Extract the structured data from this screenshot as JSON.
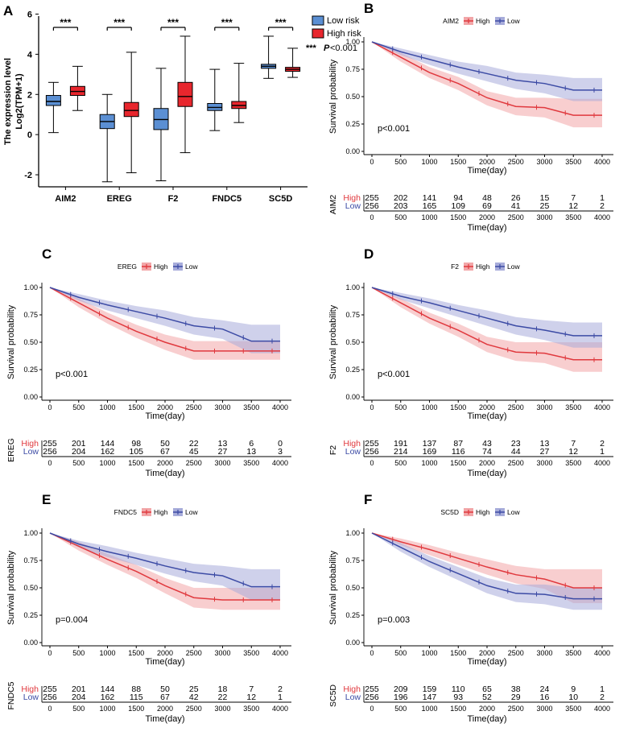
{
  "colors": {
    "low": "#5B8FD3",
    "high": "#E8262D",
    "km_high": "#E0393E",
    "km_high_fill": "#F2A6A8",
    "km_low": "#3C4BA5",
    "km_low_fill": "#A7ACDA"
  },
  "chart_data": [
    {
      "panel": "A",
      "type": "box",
      "ylabel_line1": "The expression level",
      "ylabel_line2": "Log2(TPM+1)",
      "ylim": [
        -2.6,
        5.9
      ],
      "yticks": [
        "-2",
        "0",
        "2",
        "4",
        "6"
      ],
      "ytick_values": [
        -2,
        0,
        2,
        4,
        6
      ],
      "categories": [
        "AIM2",
        "EREG",
        "F2",
        "FNDC5",
        "SC5D"
      ],
      "significance": [
        "***",
        "***",
        "***",
        "***",
        "***"
      ],
      "legend": {
        "low": "Low risk",
        "high": "High risk",
        "sig_stars": "***",
        "sig_p": "P",
        "sig_rest": "<0.001"
      },
      "series": [
        {
          "name": "Low risk",
          "boxes": [
            {
              "min": 0.1,
              "q1": 1.45,
              "median": 1.65,
              "q3": 1.95,
              "max": 2.6
            },
            {
              "min": -2.35,
              "q1": 0.3,
              "median": 0.65,
              "q3": 1.0,
              "max": 2.0
            },
            {
              "min": -2.3,
              "q1": 0.25,
              "median": 0.75,
              "q3": 1.3,
              "max": 3.3
            },
            {
              "min": 0.2,
              "q1": 1.2,
              "median": 1.35,
              "q3": 1.55,
              "max": 3.25
            },
            {
              "min": 2.8,
              "q1": 3.3,
              "median": 3.4,
              "q3": 3.5,
              "max": 4.9
            }
          ]
        },
        {
          "name": "High risk",
          "boxes": [
            {
              "min": 1.2,
              "q1": 1.95,
              "median": 2.15,
              "q3": 2.4,
              "max": 3.4
            },
            {
              "min": -1.9,
              "q1": 0.9,
              "median": 1.2,
              "q3": 1.6,
              "max": 4.1
            },
            {
              "min": -0.9,
              "q1": 1.4,
              "median": 1.9,
              "q3": 2.6,
              "max": 4.9
            },
            {
              "min": 0.6,
              "q1": 1.3,
              "median": 1.45,
              "q3": 1.65,
              "max": 3.55
            },
            {
              "min": 2.85,
              "q1": 3.15,
              "median": 3.25,
              "q3": 3.35,
              "max": 4.3
            }
          ]
        }
      ]
    },
    {
      "panel": "B",
      "type": "line",
      "gene": "AIM2",
      "legend_high": "High",
      "legend_low": "Low",
      "xlabel": "Time(day)",
      "ylabel": "Survival probability",
      "pvalue": "p<0.001",
      "xlim": [
        0,
        4000
      ],
      "ylim": [
        0,
        1
      ],
      "xticks": [
        "0",
        "500",
        "1000",
        "1500",
        "2000",
        "2500",
        "3000",
        "3500",
        "4000"
      ],
      "yticks": [
        "0.00",
        "0.25",
        "0.50",
        "0.75",
        "1.00"
      ],
      "series": [
        {
          "name": "High",
          "x": [
            0,
            500,
            1000,
            1500,
            2000,
            2500,
            3000,
            3500,
            4000
          ],
          "y": [
            1.0,
            0.86,
            0.72,
            0.62,
            0.49,
            0.41,
            0.4,
            0.33,
            0.33
          ],
          "lower": [
            1.0,
            0.82,
            0.67,
            0.56,
            0.42,
            0.33,
            0.31,
            0.22,
            0.22
          ],
          "upper": [
            1.0,
            0.9,
            0.77,
            0.68,
            0.55,
            0.49,
            0.49,
            0.48,
            0.48
          ]
        },
        {
          "name": "Low",
          "x": [
            0,
            500,
            1000,
            1500,
            2000,
            2500,
            3000,
            3500,
            4000
          ],
          "y": [
            1.0,
            0.91,
            0.84,
            0.77,
            0.71,
            0.65,
            0.62,
            0.56,
            0.56
          ],
          "lower": [
            1.0,
            0.88,
            0.79,
            0.71,
            0.64,
            0.57,
            0.53,
            0.46,
            0.46
          ],
          "upper": [
            1.0,
            0.94,
            0.88,
            0.82,
            0.78,
            0.72,
            0.7,
            0.67,
            0.67
          ]
        }
      ],
      "risk_table": {
        "high_label": "High",
        "low_label": "Low",
        "high": [
          "255",
          "202",
          "141",
          "94",
          "48",
          "26",
          "15",
          "7",
          "1"
        ],
        "low": [
          "256",
          "203",
          "165",
          "109",
          "69",
          "41",
          "25",
          "12",
          "2"
        ]
      }
    },
    {
      "panel": "C",
      "type": "line",
      "gene": "EREG",
      "legend_high": "High",
      "legend_low": "Low",
      "xlabel": "Time(day)",
      "ylabel": "Survival probability",
      "pvalue": "p<0.001",
      "xlim": [
        0,
        4000
      ],
      "ylim": [
        0,
        1
      ],
      "xticks": [
        "0",
        "500",
        "1000",
        "1500",
        "2000",
        "2500",
        "3000",
        "3500",
        "4000"
      ],
      "yticks": [
        "0.00",
        "0.25",
        "0.50",
        "0.75",
        "1.00"
      ],
      "series": [
        {
          "name": "High",
          "x": [
            0,
            500,
            1000,
            1500,
            2000,
            2500,
            3000,
            3500,
            4000
          ],
          "y": [
            1.0,
            0.86,
            0.72,
            0.6,
            0.5,
            0.42,
            0.42,
            0.42,
            0.42
          ],
          "lower": [
            1.0,
            0.82,
            0.67,
            0.54,
            0.43,
            0.34,
            0.34,
            0.34,
            0.34
          ],
          "upper": [
            1.0,
            0.9,
            0.77,
            0.66,
            0.57,
            0.51,
            0.51,
            0.51,
            0.51
          ]
        },
        {
          "name": "Low",
          "x": [
            0,
            500,
            1000,
            1500,
            2000,
            2500,
            3000,
            3500,
            4000
          ],
          "y": [
            1.0,
            0.91,
            0.84,
            0.78,
            0.72,
            0.65,
            0.62,
            0.51,
            0.51
          ],
          "lower": [
            1.0,
            0.88,
            0.79,
            0.72,
            0.65,
            0.57,
            0.53,
            0.4,
            0.4
          ],
          "upper": [
            1.0,
            0.94,
            0.88,
            0.83,
            0.79,
            0.73,
            0.7,
            0.66,
            0.66
          ]
        }
      ],
      "risk_table": {
        "high_label": "High",
        "low_label": "Low",
        "high": [
          "255",
          "201",
          "144",
          "98",
          "50",
          "22",
          "13",
          "6",
          "0"
        ],
        "low": [
          "256",
          "204",
          "162",
          "105",
          "67",
          "45",
          "27",
          "13",
          "3"
        ]
      }
    },
    {
      "panel": "D",
      "type": "line",
      "gene": "F2",
      "legend_high": "High",
      "legend_low": "Low",
      "xlabel": "Time(day)",
      "ylabel": "Survival probability",
      "pvalue": "p<0.001",
      "xlim": [
        0,
        4000
      ],
      "ylim": [
        0,
        1
      ],
      "xticks": [
        "0",
        "500",
        "1000",
        "1500",
        "2000",
        "2500",
        "3000",
        "3500",
        "4000"
      ],
      "yticks": [
        "0.00",
        "0.25",
        "0.50",
        "0.75",
        "1.00"
      ],
      "series": [
        {
          "name": "High",
          "x": [
            0,
            500,
            1000,
            1500,
            2000,
            2500,
            3000,
            3500,
            4000
          ],
          "y": [
            1.0,
            0.86,
            0.72,
            0.61,
            0.48,
            0.41,
            0.4,
            0.34,
            0.34
          ],
          "lower": [
            1.0,
            0.82,
            0.67,
            0.55,
            0.41,
            0.33,
            0.31,
            0.23,
            0.23
          ],
          "upper": [
            1.0,
            0.9,
            0.77,
            0.67,
            0.55,
            0.5,
            0.5,
            0.5,
            0.5
          ]
        },
        {
          "name": "Low",
          "x": [
            0,
            500,
            1000,
            1500,
            2000,
            2500,
            3000,
            3500,
            4000
          ],
          "y": [
            1.0,
            0.92,
            0.86,
            0.79,
            0.72,
            0.65,
            0.61,
            0.56,
            0.56
          ],
          "lower": [
            1.0,
            0.89,
            0.81,
            0.73,
            0.65,
            0.57,
            0.52,
            0.45,
            0.45
          ],
          "upper": [
            1.0,
            0.95,
            0.9,
            0.84,
            0.79,
            0.73,
            0.7,
            0.68,
            0.68
          ]
        }
      ],
      "risk_table": {
        "high_label": "High",
        "low_label": "Low",
        "high": [
          "255",
          "191",
          "137",
          "87",
          "43",
          "23",
          "13",
          "7",
          "2"
        ],
        "low": [
          "256",
          "214",
          "169",
          "116",
          "74",
          "44",
          "27",
          "12",
          "1"
        ]
      }
    },
    {
      "panel": "E",
      "type": "line",
      "gene": "FNDC5",
      "legend_high": "High",
      "legend_low": "Low",
      "xlabel": "Time(day)",
      "ylabel": "Survival probability",
      "pvalue": "p=0.004",
      "xlim": [
        0,
        4000
      ],
      "ylim": [
        0,
        1
      ],
      "xticks": [
        "0",
        "500",
        "1000",
        "1500",
        "2000",
        "2500",
        "3000",
        "3500",
        "4000"
      ],
      "yticks": [
        "0.00",
        "0.25",
        "0.50",
        "0.75",
        "1.00"
      ],
      "series": [
        {
          "name": "High",
          "x": [
            0,
            500,
            1000,
            1500,
            2000,
            2500,
            3000,
            3500,
            4000
          ],
          "y": [
            1.0,
            0.88,
            0.76,
            0.65,
            0.52,
            0.41,
            0.39,
            0.39,
            0.39
          ],
          "lower": [
            1.0,
            0.84,
            0.71,
            0.59,
            0.45,
            0.32,
            0.3,
            0.3,
            0.3
          ],
          "upper": [
            1.0,
            0.92,
            0.81,
            0.71,
            0.59,
            0.5,
            0.5,
            0.5,
            0.5
          ]
        },
        {
          "name": "Low",
          "x": [
            0,
            500,
            1000,
            1500,
            2000,
            2500,
            3000,
            3500,
            4000
          ],
          "y": [
            1.0,
            0.9,
            0.83,
            0.77,
            0.7,
            0.64,
            0.61,
            0.51,
            0.51
          ],
          "lower": [
            1.0,
            0.87,
            0.78,
            0.71,
            0.63,
            0.56,
            0.52,
            0.39,
            0.39
          ],
          "upper": [
            1.0,
            0.93,
            0.88,
            0.82,
            0.77,
            0.72,
            0.7,
            0.67,
            0.67
          ]
        }
      ],
      "risk_table": {
        "high_label": "High",
        "low_label": "Low",
        "high": [
          "255",
          "201",
          "144",
          "88",
          "50",
          "25",
          "18",
          "7",
          "2"
        ],
        "low": [
          "256",
          "204",
          "162",
          "115",
          "67",
          "42",
          "22",
          "12",
          "1"
        ]
      }
    },
    {
      "panel": "F",
      "type": "line",
      "gene": "SC5D",
      "legend_high": "High",
      "legend_low": "Low",
      "xlabel": "Time(day)",
      "ylabel": "Survival probability",
      "pvalue": "p=0.003",
      "xlim": [
        0,
        4000
      ],
      "ylim": [
        0,
        1
      ],
      "xticks": [
        "0",
        "500",
        "1000",
        "1500",
        "2000",
        "2500",
        "3000",
        "3500",
        "4000"
      ],
      "yticks": [
        "0.00",
        "0.25",
        "0.50",
        "0.75",
        "1.00"
      ],
      "series": [
        {
          "name": "High",
          "x": [
            0,
            500,
            1000,
            1500,
            2000,
            2500,
            3000,
            3500,
            4000
          ],
          "y": [
            1.0,
            0.92,
            0.85,
            0.77,
            0.69,
            0.62,
            0.58,
            0.5,
            0.5
          ],
          "lower": [
            1.0,
            0.89,
            0.8,
            0.71,
            0.62,
            0.54,
            0.49,
            0.36,
            0.36
          ],
          "upper": [
            1.0,
            0.95,
            0.89,
            0.82,
            0.76,
            0.7,
            0.67,
            0.67,
            0.67
          ]
        },
        {
          "name": "Low",
          "x": [
            0,
            500,
            1000,
            1500,
            2000,
            2500,
            3000,
            3500,
            4000
          ],
          "y": [
            1.0,
            0.87,
            0.74,
            0.63,
            0.52,
            0.45,
            0.44,
            0.4,
            0.4
          ],
          "lower": [
            1.0,
            0.83,
            0.69,
            0.57,
            0.45,
            0.37,
            0.35,
            0.3,
            0.3
          ],
          "upper": [
            1.0,
            0.91,
            0.79,
            0.69,
            0.59,
            0.53,
            0.53,
            0.5,
            0.5
          ]
        }
      ],
      "risk_table": {
        "high_label": "High",
        "low_label": "Low",
        "high": [
          "255",
          "209",
          "159",
          "110",
          "65",
          "38",
          "24",
          "9",
          "1"
        ],
        "low": [
          "256",
          "196",
          "147",
          "93",
          "52",
          "29",
          "16",
          "10",
          "2"
        ]
      }
    }
  ]
}
